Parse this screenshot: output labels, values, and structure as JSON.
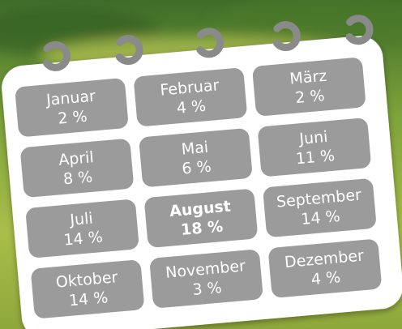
{
  "calendar": {
    "cells": [
      {
        "name": "Januar",
        "value": "2 %"
      },
      {
        "name": "Februar",
        "value": "4 %"
      },
      {
        "name": "März",
        "value": "2 %"
      },
      {
        "name": "April",
        "value": "8 %"
      },
      {
        "name": "Mai",
        "value": "6 %"
      },
      {
        "name": "Juni",
        "value": "11 %"
      },
      {
        "name": "Juli",
        "value": "14 %"
      },
      {
        "name": "August",
        "value": "18 %",
        "bold": true
      },
      {
        "name": "September",
        "value": "14 %"
      },
      {
        "name": "Oktober",
        "value": "14 %"
      },
      {
        "name": "November",
        "value": "3 %"
      },
      {
        "name": "Dezember",
        "value": "4 %"
      }
    ]
  }
}
